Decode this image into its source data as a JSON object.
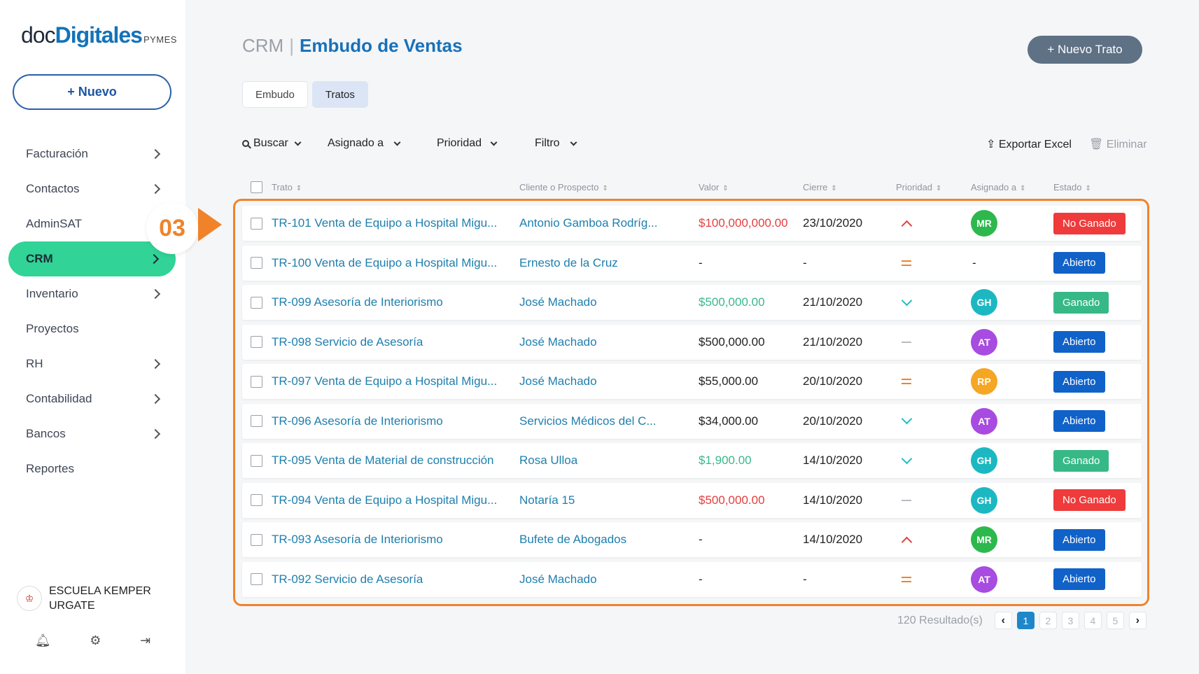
{
  "logo": {
    "doc": "doc",
    "digitales": "Digitales",
    "pymes": "PYMES"
  },
  "sidebar": {
    "new_label": "+ Nuevo",
    "items": [
      {
        "label": "Facturación",
        "has_chevron": true
      },
      {
        "label": "Contactos",
        "has_chevron": true
      },
      {
        "label": "AdminSAT",
        "has_chevron": false
      },
      {
        "label": "CRM",
        "has_chevron": true,
        "active": true
      },
      {
        "label": "Inventario",
        "has_chevron": true
      },
      {
        "label": "Proyectos",
        "has_chevron": false
      },
      {
        "label": "RH",
        "has_chevron": true
      },
      {
        "label": "Contabilidad",
        "has_chevron": true
      },
      {
        "label": "Bancos",
        "has_chevron": true
      },
      {
        "label": "Reportes",
        "has_chevron": false
      }
    ],
    "org_line1": "ESCUELA KEMPER",
    "org_line2": "URGATE"
  },
  "step_badge": "03",
  "header": {
    "section": "CRM",
    "separator": "|",
    "title": "Embudo de Ventas",
    "new_deal_label": "+ Nuevo Trato"
  },
  "tabs": [
    {
      "label": "Embudo",
      "active": false
    },
    {
      "label": "Tratos",
      "active": true
    }
  ],
  "filters": {
    "search": "Buscar",
    "assigned": "Asignado a",
    "priority": "Prioridad",
    "filter": "Filtro",
    "export": "Exportar Excel",
    "delete": "Eliminar"
  },
  "table": {
    "columns": [
      "Trato",
      "Cliente o Prospecto",
      "Valor",
      "Cierre",
      "Prioridad",
      "Asignado a",
      "Estado"
    ],
    "rows": [
      {
        "trato": "TR-101 Venta de Equipo a Hospital Migu...",
        "cliente": "Antonio Gamboa Rodríg...",
        "valor": "$100,000,000.00",
        "valor_color": "red",
        "cierre": "23/10/2020",
        "prioridad": "up",
        "asignado": "MR",
        "avatar_color": "#2db84d",
        "estado": "No Ganado",
        "estado_color": "#ef3b3b"
      },
      {
        "trato": "TR-100 Venta de Equipo a Hospital Migu...",
        "cliente": "Ernesto de la Cruz",
        "valor": "-",
        "valor_color": "black",
        "cierre": "-",
        "prioridad": "eq",
        "asignado": "-",
        "avatar_color": "",
        "estado": "Abierto",
        "estado_color": "#1062c9"
      },
      {
        "trato": "TR-099 Asesoría de Interiorismo",
        "cliente": "José Machado",
        "valor": "$500,000.00",
        "valor_color": "green",
        "cierre": "21/10/2020",
        "prioridad": "down",
        "asignado": "GH",
        "avatar_color": "#1cb8c2",
        "estado": "Ganado",
        "estado_color": "#37b987"
      },
      {
        "trato": "TR-098 Servicio de Asesoría",
        "cliente": "José Machado",
        "valor": "$500,000.00",
        "valor_color": "black",
        "cierre": "21/10/2020",
        "prioridad": "low",
        "asignado": "AT",
        "avatar_color": "#a84be0",
        "estado": "Abierto",
        "estado_color": "#1062c9"
      },
      {
        "trato": "TR-097 Venta de Equipo a Hospital Migu...",
        "cliente": "José Machado",
        "valor": "$55,000.00",
        "valor_color": "black",
        "cierre": "20/10/2020",
        "prioridad": "eq",
        "asignado": "RP",
        "avatar_color": "#f5a623",
        "estado": "Abierto",
        "estado_color": "#1062c9"
      },
      {
        "trato": "TR-096 Asesoría de Interiorismo",
        "cliente": "Servicios Médicos del C...",
        "valor": "$34,000.00",
        "valor_color": "black",
        "cierre": "20/10/2020",
        "prioridad": "down",
        "asignado": "AT",
        "avatar_color": "#a84be0",
        "estado": "Abierto",
        "estado_color": "#1062c9"
      },
      {
        "trato": "TR-095 Venta de Material de construcción",
        "cliente": "Rosa Ulloa",
        "valor": "$1,900.00",
        "valor_color": "green",
        "cierre": "14/10/2020",
        "prioridad": "down",
        "asignado": "GH",
        "avatar_color": "#1cb8c2",
        "estado": "Ganado",
        "estado_color": "#37b987"
      },
      {
        "trato": "TR-094 Venta de Equipo a Hospital Migu...",
        "cliente": "Notaría 15",
        "valor": "$500,000.00",
        "valor_color": "red",
        "cierre": "14/10/2020",
        "prioridad": "low",
        "asignado": "GH",
        "avatar_color": "#1cb8c2",
        "estado": "No Ganado",
        "estado_color": "#ef3b3b"
      },
      {
        "trato": "TR-093 Asesoría de Interiorismo",
        "cliente": "Bufete de Abogados",
        "valor": "-",
        "valor_color": "black",
        "cierre": "14/10/2020",
        "prioridad": "up",
        "asignado": "MR",
        "avatar_color": "#2db84d",
        "estado": "Abierto",
        "estado_color": "#1062c9"
      },
      {
        "trato": "TR-092 Servicio de Asesoría",
        "cliente": "José Machado",
        "valor": "-",
        "valor_color": "black",
        "cierre": "-",
        "prioridad": "eq",
        "asignado": "AT",
        "avatar_color": "#a84be0",
        "estado": "Abierto",
        "estado_color": "#1062c9"
      }
    ]
  },
  "pagination": {
    "results": "120 Resultado(s)",
    "pages": [
      "1",
      "2",
      "3",
      "4",
      "5"
    ],
    "current": "1"
  }
}
